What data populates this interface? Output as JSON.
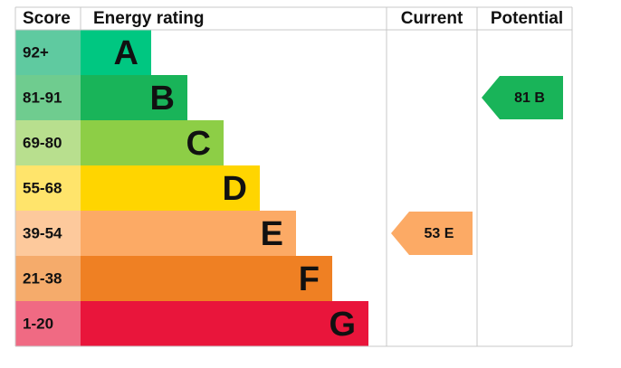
{
  "header": {
    "score": "Score",
    "rating": "Energy rating",
    "current": "Current",
    "potential": "Potential"
  },
  "bands": [
    {
      "range": "92+",
      "letter": "A",
      "color": "#00c781",
      "light": "#5fcaa0"
    },
    {
      "range": "81-91",
      "letter": "B",
      "color": "#19b459",
      "light": "#6fcc8f"
    },
    {
      "range": "69-80",
      "letter": "C",
      "color": "#8dce46",
      "light": "#b8df8e"
    },
    {
      "range": "55-68",
      "letter": "D",
      "color": "#ffd500",
      "light": "#ffe46b"
    },
    {
      "range": "39-54",
      "letter": "E",
      "color": "#fcaa65",
      "light": "#fdc99c"
    },
    {
      "range": "21-38",
      "letter": "F",
      "color": "#ef8023",
      "light": "#f5ab6b"
    },
    {
      "range": "1-20",
      "letter": "G",
      "color": "#e9153b",
      "light": "#f06a83"
    }
  ],
  "current": {
    "score": 53,
    "rating": "E"
  },
  "potential": {
    "score": 81,
    "rating": "B"
  }
}
